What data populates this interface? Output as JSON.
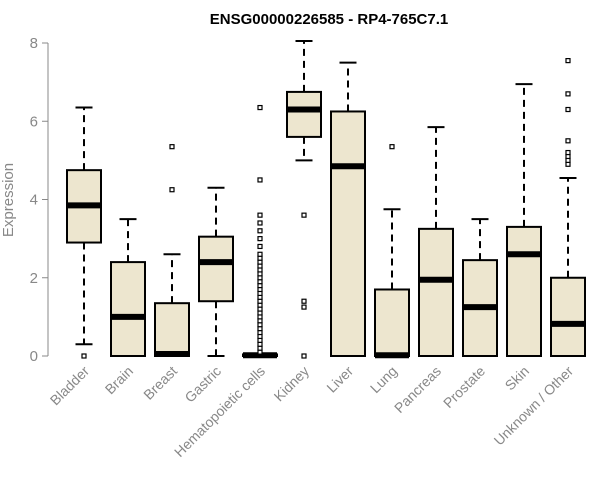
{
  "chart_data": {
    "type": "boxplot",
    "title": "ENSG00000226585 - RP4-765C7.1",
    "xlabel": "",
    "ylabel": "Expression",
    "ylim": [
      0,
      8
    ],
    "yticks": [
      0,
      2,
      4,
      6,
      8
    ],
    "box_fill": "#ede6cf",
    "categories": [
      "Bladder",
      "Brain",
      "Breast",
      "Gastric",
      "Hematopoietic cells",
      "Kidney",
      "Liver",
      "Lung",
      "Pancreas",
      "Prostate",
      "Skin",
      "Unknown / Other"
    ],
    "boxes": [
      {
        "category": "Bladder",
        "whisker_low": 0.3,
        "q1": 2.9,
        "median": 3.85,
        "q3": 4.75,
        "whisker_high": 6.35,
        "outliers": [
          0.0
        ]
      },
      {
        "category": "Brain",
        "whisker_low": 0.0,
        "q1": 0.0,
        "median": 1.0,
        "q3": 2.4,
        "whisker_high": 3.5,
        "outliers": []
      },
      {
        "category": "Breast",
        "whisker_low": 0.0,
        "q1": 0.0,
        "median": 0.05,
        "q3": 1.35,
        "whisker_high": 2.6,
        "outliers": [
          4.25,
          5.35
        ]
      },
      {
        "category": "Gastric",
        "whisker_low": 0.0,
        "q1": 1.4,
        "median": 2.4,
        "q3": 3.05,
        "whisker_high": 4.3,
        "outliers": []
      },
      {
        "category": "Hematopoietic cells",
        "whisker_low": 0.0,
        "q1": 0.0,
        "median": 0.02,
        "q3": 0.04,
        "whisker_high": 0.05,
        "outliers": [
          0.1,
          0.2,
          0.3,
          0.4,
          0.5,
          0.6,
          0.7,
          0.8,
          0.9,
          1.0,
          1.1,
          1.2,
          1.3,
          1.4,
          1.5,
          1.6,
          1.7,
          1.8,
          1.9,
          2.0,
          2.1,
          2.2,
          2.3,
          2.4,
          2.5,
          2.6,
          2.8,
          3.0,
          3.2,
          3.4,
          3.6,
          4.5,
          6.35
        ]
      },
      {
        "category": "Kidney",
        "whisker_low": 5.0,
        "q1": 5.6,
        "median": 6.3,
        "q3": 6.75,
        "whisker_high": 8.05,
        "outliers": [
          3.6,
          1.4,
          1.25,
          0.0
        ]
      },
      {
        "category": "Liver",
        "whisker_low": 0.0,
        "q1": 0.0,
        "median": 4.85,
        "q3": 6.25,
        "whisker_high": 7.5,
        "outliers": []
      },
      {
        "category": "Lung",
        "whisker_low": 0.0,
        "q1": 0.0,
        "median": 0.02,
        "q3": 1.7,
        "whisker_high": 3.75,
        "outliers": [
          5.35
        ]
      },
      {
        "category": "Pancreas",
        "whisker_low": 0.0,
        "q1": 0.0,
        "median": 1.95,
        "q3": 3.25,
        "whisker_high": 5.85,
        "outliers": []
      },
      {
        "category": "Prostate",
        "whisker_low": 0.0,
        "q1": 0.0,
        "median": 1.25,
        "q3": 2.45,
        "whisker_high": 3.5,
        "outliers": []
      },
      {
        "category": "Skin",
        "whisker_low": 0.0,
        "q1": 0.0,
        "median": 2.6,
        "q3": 3.3,
        "whisker_high": 6.95,
        "outliers": []
      },
      {
        "category": "Unknown / Other",
        "whisker_low": 0.0,
        "q1": 0.0,
        "median": 0.82,
        "q3": 2.0,
        "whisker_high": 4.55,
        "outliers": [
          4.9,
          5.0,
          5.1,
          5.2,
          5.5,
          6.3,
          6.7,
          7.55
        ]
      }
    ]
  }
}
